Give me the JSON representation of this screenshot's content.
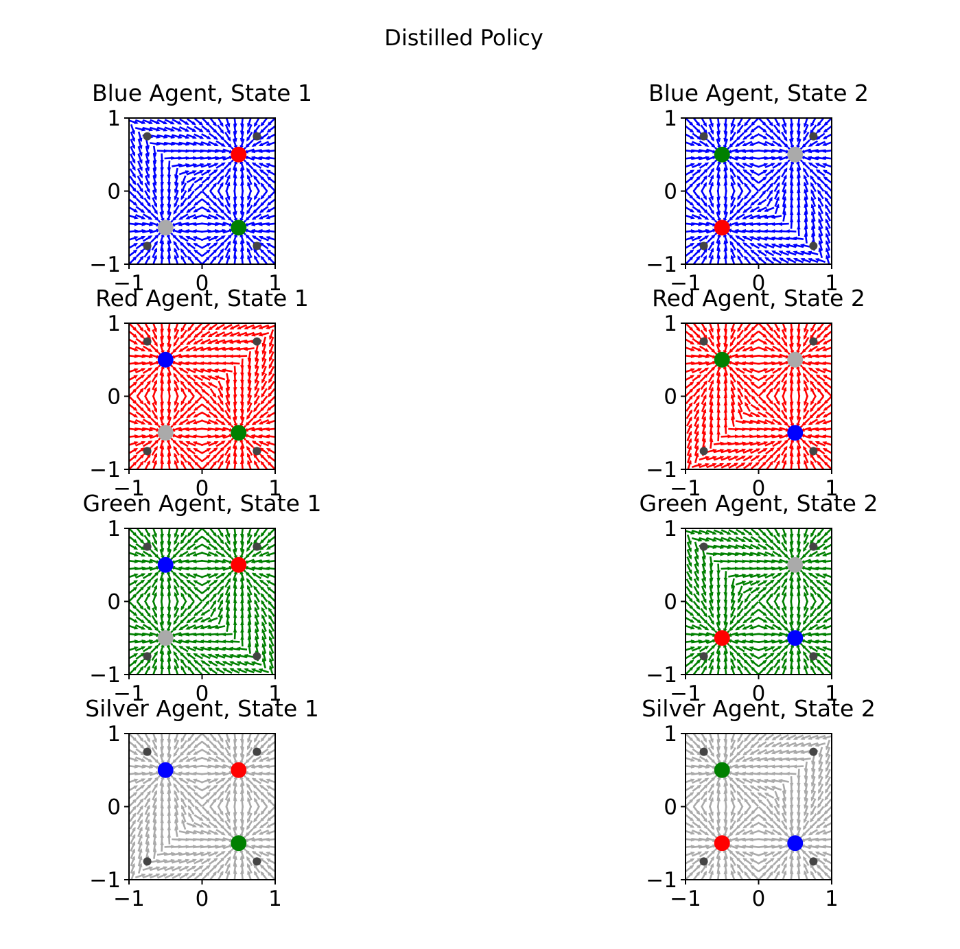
{
  "figure_title": "Distilled Policy",
  "chart_data": [
    {
      "type": "quiver",
      "title": "Blue Agent, State 1",
      "agent": "blue",
      "state": 1,
      "field_color": "#0000ff",
      "xlim": [
        -1,
        1
      ],
      "ylim": [
        -1,
        1
      ],
      "xticks": [
        "−1",
        "0",
        "1"
      ],
      "yticks": [
        "−1",
        "0",
        "1"
      ],
      "corner_markers": [
        [
          -0.75,
          0.75
        ],
        [
          0.75,
          0.75
        ],
        [
          -0.75,
          -0.75
        ],
        [
          0.75,
          -0.75
        ]
      ],
      "points": [
        {
          "color": "#ff0000",
          "x": 0.5,
          "y": 0.5
        },
        {
          "color": "#008000",
          "x": 0.5,
          "y": -0.5
        },
        {
          "color": "#aaaaaa",
          "x": -0.5,
          "y": -0.5
        }
      ]
    },
    {
      "type": "quiver",
      "title": "Blue Agent, State 2",
      "agent": "blue",
      "state": 2,
      "field_color": "#0000ff",
      "xlim": [
        -1,
        1
      ],
      "ylim": [
        -1,
        1
      ],
      "xticks": [
        "−1",
        "0",
        "1"
      ],
      "yticks": [
        "−1",
        "0",
        "1"
      ],
      "corner_markers": [
        [
          -0.75,
          0.75
        ],
        [
          0.75,
          0.75
        ],
        [
          -0.75,
          -0.75
        ],
        [
          0.75,
          -0.75
        ]
      ],
      "points": [
        {
          "color": "#008000",
          "x": -0.5,
          "y": 0.5
        },
        {
          "color": "#aaaaaa",
          "x": 0.5,
          "y": 0.5
        },
        {
          "color": "#ff0000",
          "x": -0.5,
          "y": -0.5
        }
      ]
    },
    {
      "type": "quiver",
      "title": "Red Agent, State 1",
      "agent": "red",
      "state": 1,
      "field_color": "#ff0000",
      "xlim": [
        -1,
        1
      ],
      "ylim": [
        -1,
        1
      ],
      "xticks": [
        "−1",
        "0",
        "1"
      ],
      "yticks": [
        "−1",
        "0",
        "1"
      ],
      "corner_markers": [
        [
          -0.75,
          0.75
        ],
        [
          0.75,
          0.75
        ],
        [
          -0.75,
          -0.75
        ],
        [
          0.75,
          -0.75
        ]
      ],
      "points": [
        {
          "color": "#0000ff",
          "x": -0.5,
          "y": 0.5
        },
        {
          "color": "#aaaaaa",
          "x": -0.5,
          "y": -0.5
        },
        {
          "color": "#008000",
          "x": 0.5,
          "y": -0.5
        }
      ]
    },
    {
      "type": "quiver",
      "title": "Red Agent, State 2",
      "agent": "red",
      "state": 2,
      "field_color": "#ff0000",
      "xlim": [
        -1,
        1
      ],
      "ylim": [
        -1,
        1
      ],
      "xticks": [
        "−1",
        "0",
        "1"
      ],
      "yticks": [
        "−1",
        "0",
        "1"
      ],
      "corner_markers": [
        [
          -0.75,
          0.75
        ],
        [
          0.75,
          0.75
        ],
        [
          -0.75,
          -0.75
        ],
        [
          0.75,
          -0.75
        ]
      ],
      "points": [
        {
          "color": "#008000",
          "x": -0.5,
          "y": 0.5
        },
        {
          "color": "#aaaaaa",
          "x": 0.5,
          "y": 0.5
        },
        {
          "color": "#0000ff",
          "x": 0.5,
          "y": -0.5
        }
      ]
    },
    {
      "type": "quiver",
      "title": "Green Agent, State 1",
      "agent": "green",
      "state": 1,
      "field_color": "#008000",
      "xlim": [
        -1,
        1
      ],
      "ylim": [
        -1,
        1
      ],
      "xticks": [
        "−1",
        "0",
        "1"
      ],
      "yticks": [
        "−1",
        "0",
        "1"
      ],
      "corner_markers": [
        [
          -0.75,
          0.75
        ],
        [
          0.75,
          0.75
        ],
        [
          -0.75,
          -0.75
        ],
        [
          0.75,
          -0.75
        ]
      ],
      "points": [
        {
          "color": "#0000ff",
          "x": -0.5,
          "y": 0.5
        },
        {
          "color": "#ff0000",
          "x": 0.5,
          "y": 0.5
        },
        {
          "color": "#aaaaaa",
          "x": -0.5,
          "y": -0.5
        }
      ]
    },
    {
      "type": "quiver",
      "title": "Green Agent, State 2",
      "agent": "green",
      "state": 2,
      "field_color": "#008000",
      "xlim": [
        -1,
        1
      ],
      "ylim": [
        -1,
        1
      ],
      "xticks": [
        "−1",
        "0",
        "1"
      ],
      "yticks": [
        "−1",
        "0",
        "1"
      ],
      "corner_markers": [
        [
          -0.75,
          0.75
        ],
        [
          0.75,
          0.75
        ],
        [
          -0.75,
          -0.75
        ],
        [
          0.75,
          -0.75
        ]
      ],
      "points": [
        {
          "color": "#aaaaaa",
          "x": 0.5,
          "y": 0.5
        },
        {
          "color": "#ff0000",
          "x": -0.5,
          "y": -0.5
        },
        {
          "color": "#0000ff",
          "x": 0.5,
          "y": -0.5
        }
      ]
    },
    {
      "type": "quiver",
      "title": "Silver Agent, State 1",
      "agent": "silver",
      "state": 1,
      "field_color": "#aaaaaa",
      "xlim": [
        -1,
        1
      ],
      "ylim": [
        -1,
        1
      ],
      "xticks": [
        "−1",
        "0",
        "1"
      ],
      "yticks": [
        "−1",
        "0",
        "1"
      ],
      "corner_markers": [
        [
          -0.75,
          0.75
        ],
        [
          0.75,
          0.75
        ],
        [
          -0.75,
          -0.75
        ],
        [
          0.75,
          -0.75
        ]
      ],
      "points": [
        {
          "color": "#0000ff",
          "x": -0.5,
          "y": 0.5
        },
        {
          "color": "#ff0000",
          "x": 0.5,
          "y": 0.5
        },
        {
          "color": "#008000",
          "x": 0.5,
          "y": -0.5
        }
      ]
    },
    {
      "type": "quiver",
      "title": "Silver Agent, State 2",
      "agent": "silver",
      "state": 2,
      "field_color": "#aaaaaa",
      "xlim": [
        -1,
        1
      ],
      "ylim": [
        -1,
        1
      ],
      "xticks": [
        "−1",
        "0",
        "1"
      ],
      "yticks": [
        "−1",
        "0",
        "1"
      ],
      "corner_markers": [
        [
          -0.75,
          0.75
        ],
        [
          0.75,
          0.75
        ],
        [
          -0.75,
          -0.75
        ],
        [
          0.75,
          -0.75
        ]
      ],
      "points": [
        {
          "color": "#008000",
          "x": -0.5,
          "y": 0.5
        },
        {
          "color": "#ff0000",
          "x": -0.5,
          "y": -0.5
        },
        {
          "color": "#0000ff",
          "x": 0.5,
          "y": -0.5
        }
      ]
    }
  ]
}
